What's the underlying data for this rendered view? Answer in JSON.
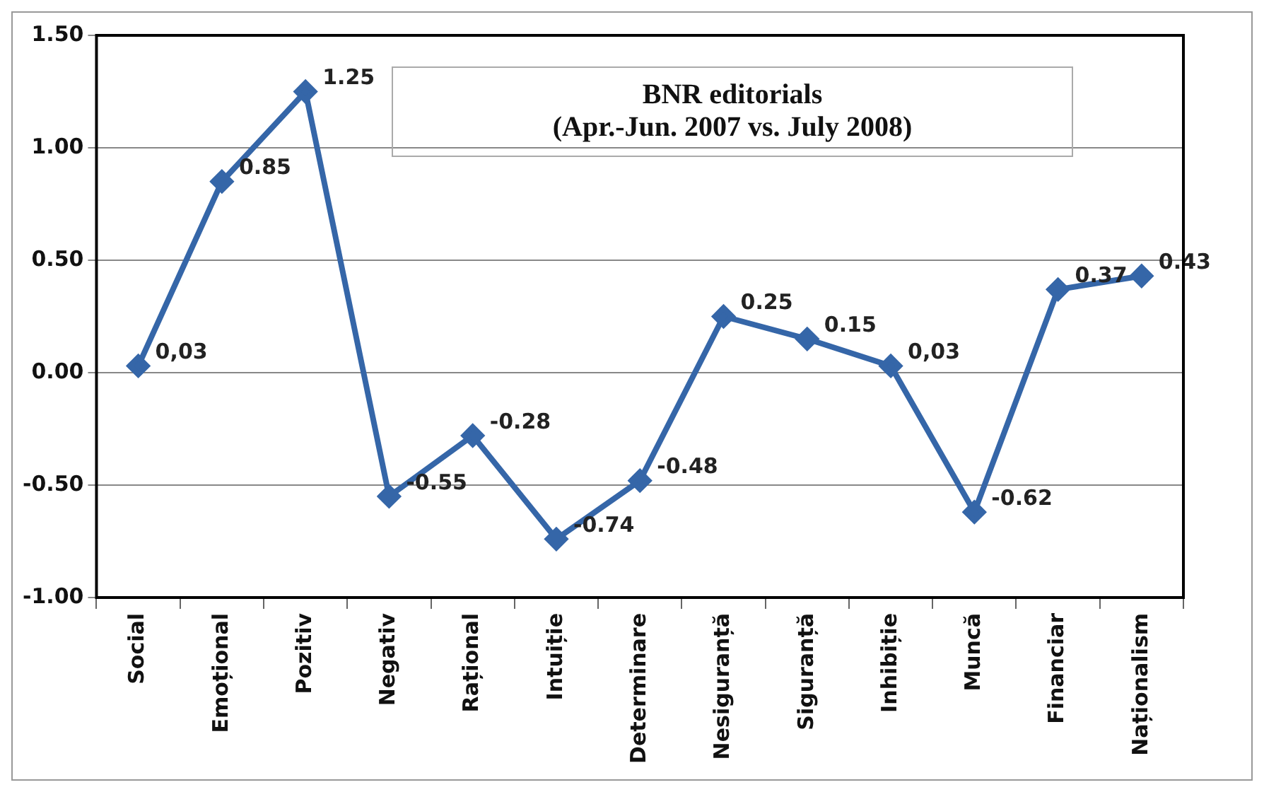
{
  "chart_data": {
    "type": "line",
    "title": "BNR editorials\n(Apr.-Jun. 2007 vs. July 2008)",
    "categories": [
      "Social",
      "Emoțional",
      "Pozitiv",
      "Negativ",
      "Rațional",
      "Intuiție",
      "Determinare",
      "Nesiguranță",
      "Siguranță",
      "Inhibiție",
      "Muncă",
      "Financiar",
      "Naționalism"
    ],
    "series": [
      {
        "color": "#3566a8",
        "values": [
          0.03,
          0.85,
          1.25,
          -0.55,
          -0.28,
          -0.74,
          -0.48,
          0.25,
          0.15,
          0.03,
          -0.62,
          0.37,
          0.43
        ],
        "value_labels": [
          "0,03",
          "0.85",
          "1.25",
          "-0.55",
          "-0.28",
          "-0.74",
          "-0.48",
          "0.25",
          "0.15",
          "0,03",
          "-0.62",
          "0.37",
          "0.43"
        ]
      }
    ],
    "ylim": [
      -1,
      1.5
    ],
    "yticks": [
      {
        "value": -1,
        "label": "-1.00"
      },
      {
        "value": -0.5,
        "label": "-0.50"
      },
      {
        "value": 0,
        "label": "0.00"
      },
      {
        "value": 0.5,
        "label": "0.50"
      },
      {
        "value": 1,
        "label": "1.00"
      },
      {
        "value": 1.5,
        "label": "1.50"
      }
    ],
    "grid": "y",
    "legend": false,
    "marker": "diamond",
    "line_style": "solid"
  }
}
